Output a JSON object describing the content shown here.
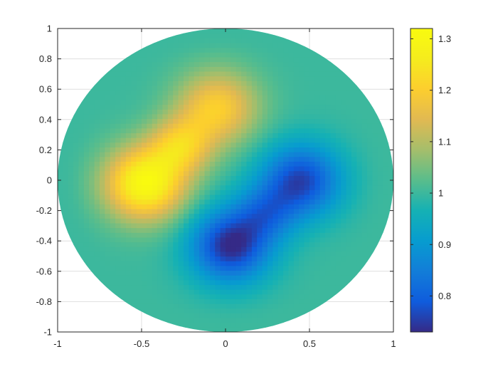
{
  "chart_data": {
    "type": "heatmap",
    "title": "",
    "xlabel": "",
    "ylabel": "",
    "xlim": [
      -1,
      1
    ],
    "ylim": [
      -1,
      1
    ],
    "grid": true,
    "domain_shape": "unit disk",
    "colormap": "parula",
    "xticks": [
      "-1",
      "-0.5",
      "0",
      "0.5",
      "1"
    ],
    "yticks": [
      "1",
      "0.8",
      "0.6",
      "0.4",
      "0.2",
      "0",
      "-0.2",
      "-0.4",
      "-0.6",
      "-0.8",
      "-1"
    ],
    "colorbar": {
      "min": 0.73,
      "max": 1.32,
      "ticks": [
        "1.3",
        "1.2",
        "1.1",
        "1",
        "0.9",
        "0.8"
      ],
      "tick_values": [
        1.3,
        1.2,
        1.1,
        1.0,
        0.9,
        0.8
      ]
    },
    "baseline_value": 1.0,
    "features": [
      {
        "kind": "max",
        "x": -0.48,
        "y": -0.02,
        "value": 1.31
      },
      {
        "kind": "max",
        "x": -0.05,
        "y": 0.48,
        "value": 1.2
      },
      {
        "kind": "min",
        "x": 0.45,
        "y": 0.0,
        "value": 0.76
      },
      {
        "kind": "min",
        "x": 0.03,
        "y": -0.43,
        "value": 0.73
      }
    ]
  }
}
